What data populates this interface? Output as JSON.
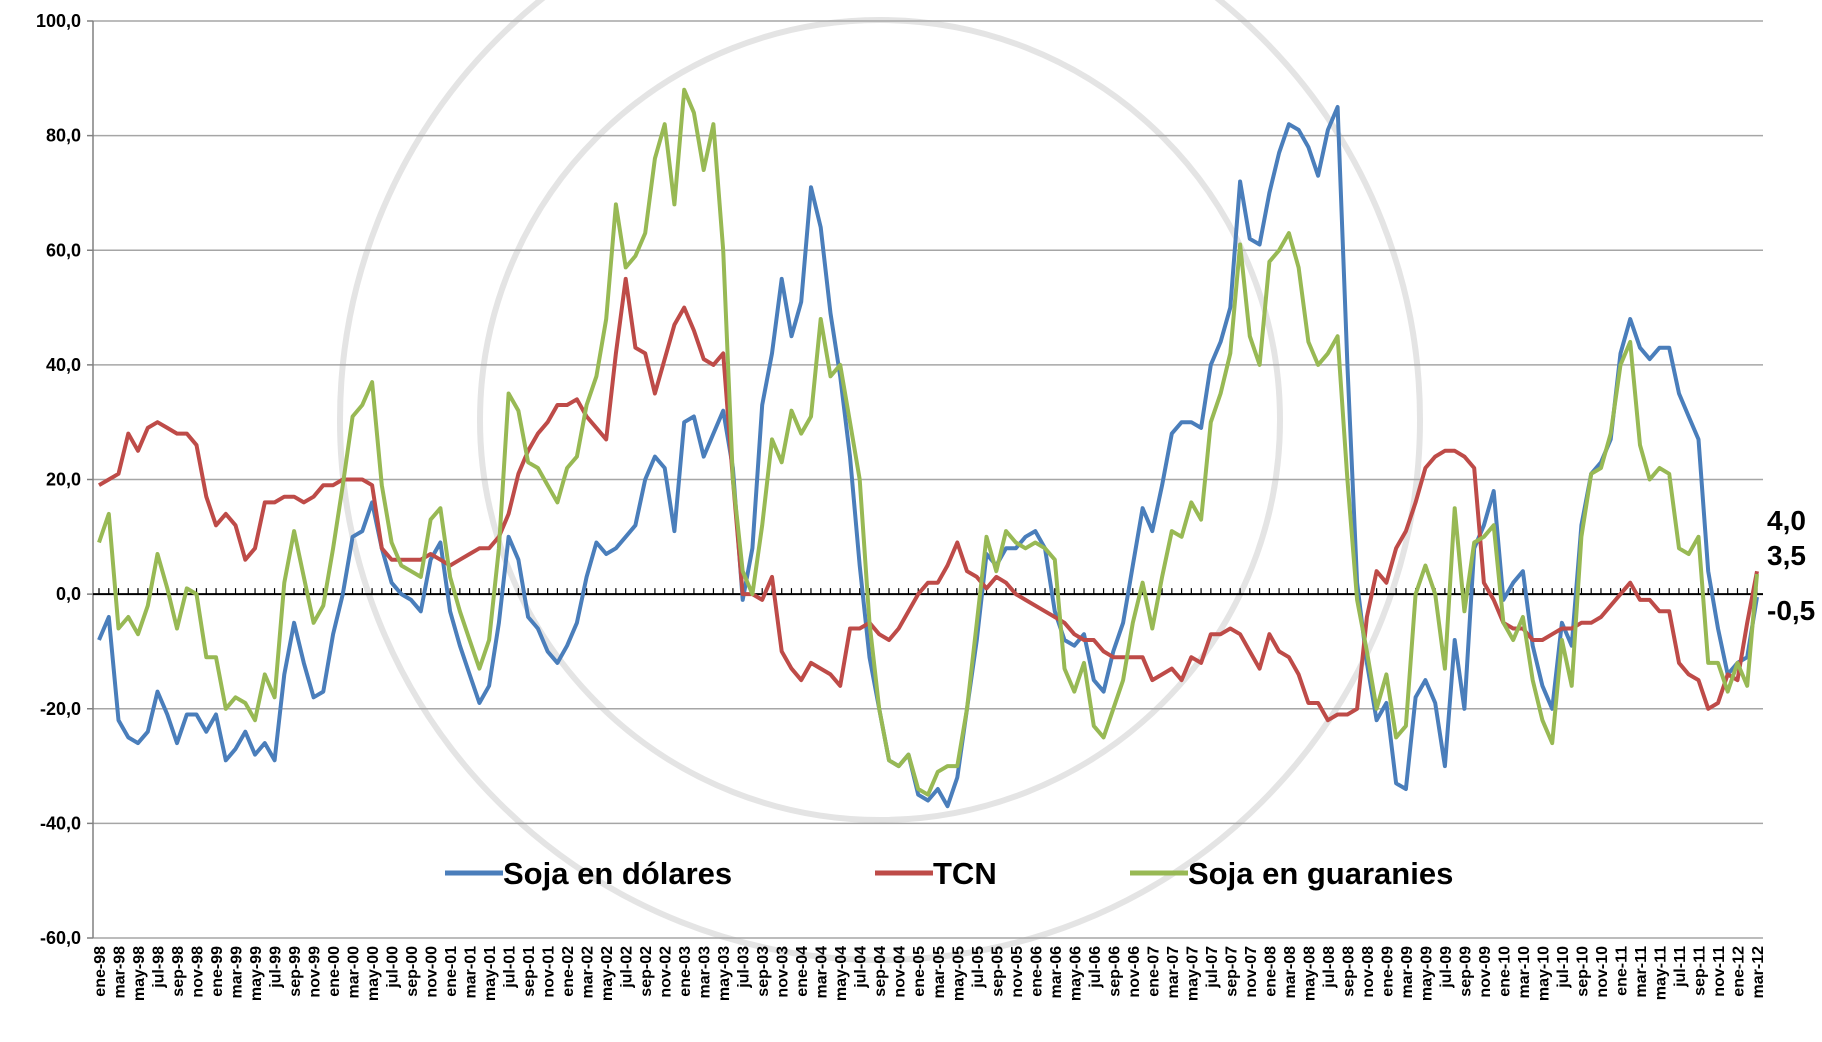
{
  "chart_data": {
    "type": "line",
    "categories": [
      "ene-98",
      null,
      "mar-98",
      null,
      "may-98",
      null,
      "jul-98",
      null,
      "sep-98",
      null,
      "nov-98",
      null,
      "ene-99",
      null,
      "mar-99",
      null,
      "may-99",
      null,
      "jul-99",
      null,
      "sep-99",
      null,
      "nov-99",
      null,
      "ene-00",
      null,
      "mar-00",
      null,
      "may-00",
      null,
      "jul-00",
      null,
      "sep-00",
      null,
      "nov-00",
      null,
      "ene-01",
      null,
      "mar-01",
      null,
      "may-01",
      null,
      "jul-01",
      null,
      "sep-01",
      null,
      "nov-01",
      null,
      "ene-02",
      null,
      "mar-02",
      null,
      "may-02",
      null,
      "jul-02",
      null,
      "sep-02",
      null,
      "nov-02",
      null,
      "ene-03",
      null,
      "mar-03",
      null,
      "may-03",
      null,
      "jul-03",
      null,
      "sep-03",
      null,
      "nov-03",
      null,
      "ene-04",
      null,
      "mar-04",
      null,
      "may-04",
      null,
      "jul-04",
      null,
      "sep-04",
      null,
      "nov-04",
      null,
      "ene-05",
      null,
      "mar-05",
      null,
      "may-05",
      null,
      "jul-05",
      null,
      "sep-05",
      null,
      "nov-05",
      null,
      "ene-06",
      null,
      "mar-06",
      null,
      "may-06",
      null,
      "jul-06",
      null,
      "sep-06",
      null,
      "nov-06",
      null,
      "ene-07",
      null,
      "mar-07",
      null,
      "may-07",
      null,
      "jul-07",
      null,
      "sep-07",
      null,
      "nov-07",
      null,
      "ene-08",
      null,
      "mar-08",
      null,
      "may-08",
      null,
      "jul-08",
      null,
      "sep-08",
      null,
      "nov-08",
      null,
      "ene-09",
      null,
      "mar-09",
      null,
      "may-09",
      null,
      "jul-09",
      null,
      "sep-09",
      null,
      "nov-09",
      null,
      "ene-10",
      null,
      "mar-10",
      null,
      "may-10",
      null,
      "jul-10",
      null,
      "sep-10",
      null,
      "nov-10",
      null,
      "ene-11",
      null,
      "mar-11",
      null,
      "may-11",
      null,
      "jul-11",
      null,
      "sep-11",
      null,
      "nov-11",
      null,
      "ene-12",
      null,
      "mar-12"
    ],
    "series": [
      {
        "name": "Soja en dólares",
        "color": "#4a7ebb",
        "values": [
          -8,
          -4,
          -22,
          -25,
          -26,
          -24,
          -17,
          -21,
          -26,
          -21,
          -21,
          -24,
          -21,
          -29,
          -27,
          -24,
          -28,
          -26,
          -29,
          -14,
          -5,
          -12,
          -18,
          -17,
          -7,
          0,
          10,
          11,
          16,
          8,
          2,
          0,
          -1,
          -3,
          6,
          9,
          -3,
          -9,
          -14,
          -19,
          -16,
          -5,
          10,
          6,
          -4,
          -6,
          -10,
          -12,
          -9,
          -5,
          3,
          9,
          7,
          8,
          10,
          12,
          20,
          24,
          22,
          11,
          30,
          31,
          24,
          28,
          32,
          22,
          -1,
          8,
          33,
          42,
          55,
          45,
          51,
          71,
          64,
          49,
          38,
          24,
          5,
          -11,
          -20,
          -29,
          -30,
          -28,
          -35,
          -36,
          -34,
          -37,
          -32,
          -20,
          -8,
          7,
          5,
          8,
          8,
          10,
          11,
          8,
          -3,
          -8,
          -9,
          -7,
          -15,
          -17,
          -10,
          -5,
          5,
          15,
          11,
          19,
          28,
          30,
          30,
          29,
          40,
          44,
          50,
          72,
          62,
          61,
          70,
          77,
          82,
          81,
          78,
          73,
          81,
          85,
          40,
          2,
          -12,
          -22,
          -19,
          -33,
          -34,
          -18,
          -15,
          -19,
          -30,
          -8,
          -20,
          8,
          12,
          18,
          -1,
          2,
          4,
          -9,
          -16,
          -20,
          -5,
          -9,
          12,
          21,
          23,
          27,
          42,
          48,
          43,
          41,
          43,
          43,
          35,
          31,
          27,
          4,
          -6,
          -14,
          -12,
          -11,
          -0.5
        ],
        "value_labels": [
          null,
          null,
          null,
          null,
          null,
          null,
          null,
          null,
          null,
          null,
          null,
          null,
          null,
          null,
          null,
          null,
          null,
          null,
          null,
          null,
          null,
          null,
          null,
          null,
          null,
          null,
          null,
          null,
          null,
          null,
          null,
          null,
          null,
          null,
          null,
          null,
          null,
          null,
          null,
          null,
          null,
          null,
          null,
          null,
          null,
          null,
          null,
          null,
          null,
          null,
          null,
          null,
          null,
          null,
          null,
          null,
          null,
          null,
          null,
          null,
          null,
          null,
          null,
          null,
          null,
          null,
          null,
          null,
          null,
          null,
          null,
          null,
          null,
          null,
          null,
          null,
          null,
          null,
          null,
          null,
          null,
          null,
          null,
          null,
          null,
          null,
          null,
          null,
          null,
          null,
          null,
          null,
          null,
          null,
          null,
          null,
          null,
          null,
          null,
          null,
          null,
          null,
          null,
          null,
          null,
          null,
          null,
          null,
          null,
          null,
          null,
          null,
          null,
          null,
          null,
          null,
          null,
          null,
          null,
          null,
          null,
          null,
          null,
          null,
          null,
          null,
          null,
          null,
          null,
          null,
          null,
          null,
          null,
          null,
          null,
          null,
          null,
          null,
          null,
          null,
          null,
          null,
          null,
          null,
          null,
          null,
          null,
          null,
          null,
          null,
          null,
          null,
          null,
          null,
          null,
          null,
          null,
          null,
          null,
          null,
          null,
          null,
          null,
          null,
          null,
          null,
          null,
          null,
          null,
          null,
          "-0,5"
        ]
      },
      {
        "name": "TCN",
        "color": "#be4b48",
        "values": [
          19,
          20,
          21,
          28,
          25,
          29,
          30,
          29,
          28,
          28,
          26,
          17,
          12,
          14,
          12,
          6,
          8,
          16,
          16,
          17,
          17,
          16,
          17,
          19,
          19,
          20,
          20,
          20,
          19,
          8,
          6,
          6,
          6,
          6,
          7,
          6,
          5,
          6,
          7,
          8,
          8,
          10,
          14,
          21,
          25,
          28,
          30,
          33,
          33,
          34,
          31,
          29,
          27,
          42,
          55,
          43,
          42,
          35,
          41,
          47,
          50,
          46,
          41,
          40,
          42,
          20,
          0,
          0,
          -1,
          3,
          -10,
          -13,
          -15,
          -12,
          -13,
          -14,
          -16,
          -6,
          -6,
          -5,
          -7,
          -8,
          -6,
          -3,
          0,
          2,
          2,
          5,
          9,
          4,
          3,
          1,
          3,
          2,
          0,
          -1,
          -2,
          -3,
          -4,
          -5,
          -7,
          -8,
          -8,
          -10,
          -11,
          -11,
          -11,
          -11,
          -15,
          -14,
          -13,
          -15,
          -11,
          -12,
          -7,
          -7,
          -6,
          -7,
          -10,
          -13,
          -7,
          -10,
          -11,
          -14,
          -19,
          -19,
          -22,
          -21,
          -21,
          -20,
          -4,
          4,
          2,
          8,
          11,
          16,
          22,
          24,
          25,
          25,
          24,
          22,
          2,
          -1,
          -5,
          -6,
          -6,
          -8,
          -8,
          -7,
          -6,
          -6,
          -5,
          -5,
          -4,
          -2,
          0,
          2,
          -1,
          -1,
          -3,
          -3,
          -12,
          -14,
          -15,
          -20,
          -19,
          -14,
          -15,
          -5,
          4
        ],
        "value_labels": [
          null,
          null,
          null,
          null,
          null,
          null,
          null,
          null,
          null,
          null,
          null,
          null,
          null,
          null,
          null,
          null,
          null,
          null,
          null,
          null,
          null,
          null,
          null,
          null,
          null,
          null,
          null,
          null,
          null,
          null,
          null,
          null,
          null,
          null,
          null,
          null,
          null,
          null,
          null,
          null,
          null,
          null,
          null,
          null,
          null,
          null,
          null,
          null,
          null,
          null,
          null,
          null,
          null,
          null,
          null,
          null,
          null,
          null,
          null,
          null,
          null,
          null,
          null,
          null,
          null,
          null,
          null,
          null,
          null,
          null,
          null,
          null,
          null,
          null,
          null,
          null,
          null,
          null,
          null,
          null,
          null,
          null,
          null,
          null,
          null,
          null,
          null,
          null,
          null,
          null,
          null,
          null,
          null,
          null,
          null,
          null,
          null,
          null,
          null,
          null,
          null,
          null,
          null,
          null,
          null,
          null,
          null,
          null,
          null,
          null,
          null,
          null,
          null,
          null,
          null,
          null,
          null,
          null,
          null,
          null,
          null,
          null,
          null,
          null,
          null,
          null,
          null,
          null,
          null,
          null,
          null,
          null,
          null,
          null,
          null,
          null,
          null,
          null,
          null,
          null,
          null,
          null,
          null,
          null,
          null,
          null,
          null,
          null,
          null,
          null,
          null,
          null,
          null,
          null,
          null,
          null,
          null,
          null,
          null,
          null,
          null,
          null,
          null,
          null,
          null,
          null,
          null,
          null,
          null,
          null,
          "4,0"
        ]
      },
      {
        "name": "Soja en guaranies",
        "color": "#98b954",
        "values": [
          9,
          14,
          -6,
          -4,
          -7,
          -2,
          7,
          1,
          -6,
          1,
          0,
          -11,
          -11,
          -20,
          -18,
          -19,
          -22,
          -14,
          -18,
          2,
          11,
          3,
          -5,
          -2,
          8,
          19,
          31,
          33,
          37,
          19,
          9,
          5,
          4,
          3,
          13,
          15,
          3,
          -3,
          -8,
          -13,
          -8,
          8,
          35,
          32,
          23,
          22,
          19,
          16,
          22,
          24,
          33,
          38,
          48,
          68,
          57,
          59,
          63,
          76,
          82,
          68,
          88,
          84,
          74,
          82,
          60,
          20,
          4,
          0,
          12,
          27,
          23,
          32,
          28,
          31,
          48,
          38,
          40,
          30,
          20,
          -5,
          -20,
          -29,
          -30,
          -28,
          -34,
          -35,
          -31,
          -30,
          -30,
          -20,
          -5,
          10,
          4,
          11,
          9,
          8,
          9,
          8,
          6,
          -13,
          -17,
          -12,
          -23,
          -25,
          -20,
          -15,
          -5,
          2,
          -6,
          3,
          11,
          10,
          16,
          13,
          30,
          35,
          42,
          61,
          45,
          40,
          58,
          60,
          63,
          57,
          44,
          40,
          42,
          45,
          20,
          -1,
          -10,
          -20,
          -14,
          -25,
          -23,
          0,
          5,
          0,
          -13,
          15,
          -3,
          9,
          10,
          12,
          -5,
          -8,
          -4,
          -15,
          -22,
          -26,
          -8,
          -16,
          10,
          21,
          22,
          28,
          40,
          44,
          26,
          20,
          22,
          21,
          8,
          7,
          10,
          -12,
          -12,
          -17,
          -12,
          -16,
          3.5
        ],
        "value_labels": [
          null,
          null,
          null,
          null,
          null,
          null,
          null,
          null,
          null,
          null,
          null,
          null,
          null,
          null,
          null,
          null,
          null,
          null,
          null,
          null,
          null,
          null,
          null,
          null,
          null,
          null,
          null,
          null,
          null,
          null,
          null,
          null,
          null,
          null,
          null,
          null,
          null,
          null,
          null,
          null,
          null,
          null,
          null,
          null,
          null,
          null,
          null,
          null,
          null,
          null,
          null,
          null,
          null,
          null,
          null,
          null,
          null,
          null,
          null,
          null,
          null,
          null,
          null,
          null,
          null,
          null,
          null,
          null,
          null,
          null,
          null,
          null,
          null,
          null,
          null,
          null,
          null,
          null,
          null,
          null,
          null,
          null,
          null,
          null,
          null,
          null,
          null,
          null,
          null,
          null,
          null,
          null,
          null,
          null,
          null,
          null,
          null,
          null,
          null,
          null,
          null,
          null,
          null,
          null,
          null,
          null,
          null,
          null,
          null,
          null,
          null,
          null,
          null,
          null,
          null,
          null,
          null,
          null,
          null,
          null,
          null,
          null,
          null,
          null,
          null,
          null,
          null,
          null,
          null,
          null,
          null,
          null,
          null,
          null,
          null,
          null,
          null,
          null,
          null,
          null,
          null,
          null,
          null,
          null,
          null,
          null,
          null,
          null,
          null,
          null,
          null,
          null,
          null,
          null,
          null,
          null,
          null,
          null,
          null,
          null,
          null,
          null,
          null,
          null,
          null,
          null,
          null,
          null,
          null,
          null,
          "3,5"
        ]
      }
    ],
    "ylim": [
      -60,
      100
    ],
    "yticks": [
      {
        "value": -60,
        "label": "-60,0"
      },
      {
        "value": -40,
        "label": "-40,0"
      },
      {
        "value": -20,
        "label": "-20,0"
      },
      {
        "value": 0,
        "label": "0,0"
      },
      {
        "value": 20,
        "label": "20,0"
      },
      {
        "value": 40,
        "label": "40,0"
      },
      {
        "value": 60,
        "label": "60,0"
      },
      {
        "value": 80,
        "label": "80,0"
      },
      {
        "value": 100,
        "label": "100,0"
      }
    ],
    "grid": true,
    "legend": "bottom"
  }
}
